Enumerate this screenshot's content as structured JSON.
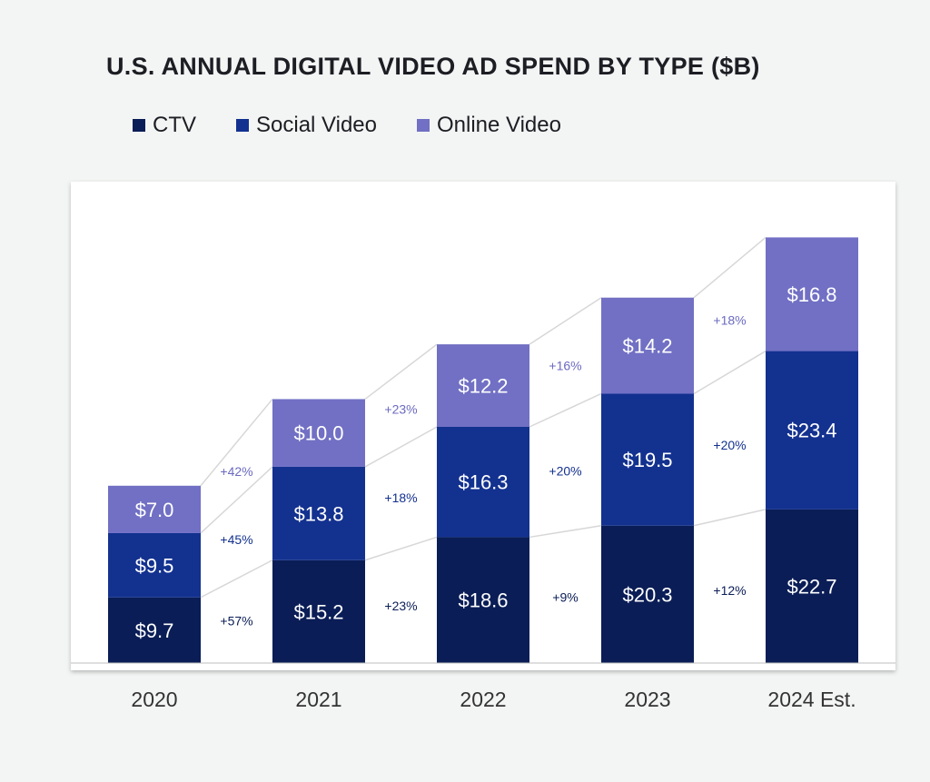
{
  "chart_data": {
    "type": "bar",
    "stacked": true,
    "title": "U.S. ANNUAL DIGITAL VIDEO AD SPEND BY TYPE ($B)",
    "categories": [
      "2020",
      "2021",
      "2022",
      "2023",
      "2024 Est."
    ],
    "series": [
      {
        "name": "CTV",
        "color": "#0a1d56",
        "values": [
          9.7,
          15.2,
          18.6,
          20.3,
          22.7
        ],
        "labels": [
          "$9.7",
          "$15.2",
          "$18.6",
          "$20.3",
          "$22.7"
        ]
      },
      {
        "name": "Social Video",
        "color": "#13318f",
        "values": [
          9.5,
          13.8,
          16.3,
          19.5,
          23.4
        ],
        "labels": [
          "$9.5",
          "$13.8",
          "$16.3",
          "$19.5",
          "$23.4"
        ]
      },
      {
        "name": "Online Video",
        "color": "#7170c4",
        "values": [
          7.0,
          10.0,
          12.2,
          14.2,
          16.8
        ],
        "labels": [
          "$7.0",
          "$10.0",
          "$12.2",
          "$14.2",
          "$16.8"
        ]
      }
    ],
    "growth_labels": {
      "CTV": [
        "+57%",
        "+23%",
        "+9%",
        "+12%"
      ],
      "Social Video": [
        "+45%",
        "+18%",
        "+20%",
        "+20%"
      ],
      "Online Video": [
        "+42%",
        "+23%",
        "+16%",
        "+18%"
      ]
    },
    "growth_colors": {
      "CTV": "#0a1d56",
      "Social Video": "#13318f",
      "Online Video": "#6b6ac0"
    },
    "legend_position": "top-left",
    "grid": false,
    "ylim": [
      0,
      65
    ]
  }
}
